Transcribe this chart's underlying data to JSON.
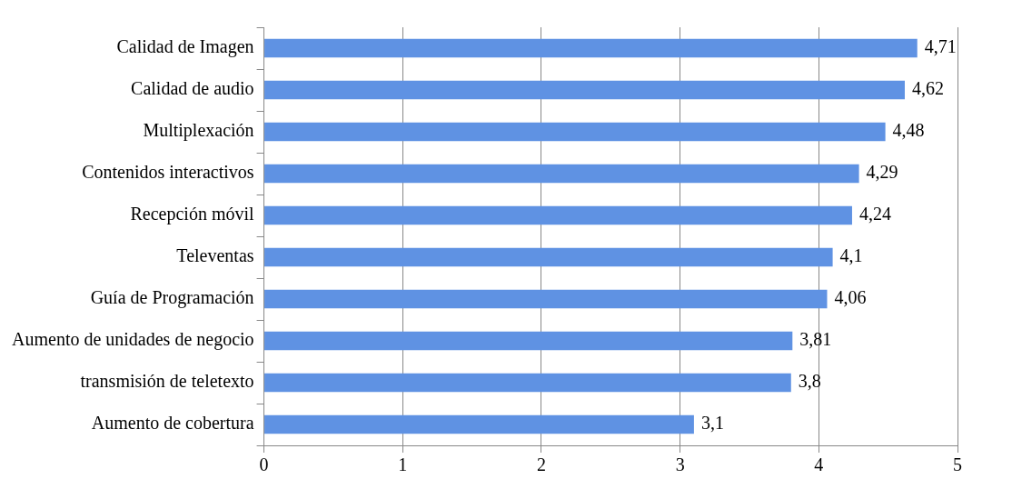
{
  "chart_data": {
    "type": "bar",
    "orientation": "horizontal",
    "categories": [
      "Calidad de Imagen",
      "Calidad de audio",
      "Multiplexación",
      "Contenidos interactivos",
      "Recepción móvil",
      "Televentas",
      "Guía de Programación",
      "Aumento de unidades de negocio",
      "transmisión de teletexto",
      "Aumento de cobertura"
    ],
    "values": [
      4.71,
      4.62,
      4.48,
      4.29,
      4.24,
      4.1,
      4.06,
      3.81,
      3.8,
      3.1
    ],
    "value_labels": [
      "4,71",
      "4,62",
      "4,48",
      "4,29",
      "4,24",
      "4,1",
      "4,06",
      "3,81",
      "3,8",
      "3,1"
    ],
    "color": "#5f92e3",
    "xlim": [
      0,
      5
    ],
    "xticks": [
      0,
      1,
      2,
      3,
      4,
      5
    ],
    "grid": "x",
    "legend": false
  }
}
